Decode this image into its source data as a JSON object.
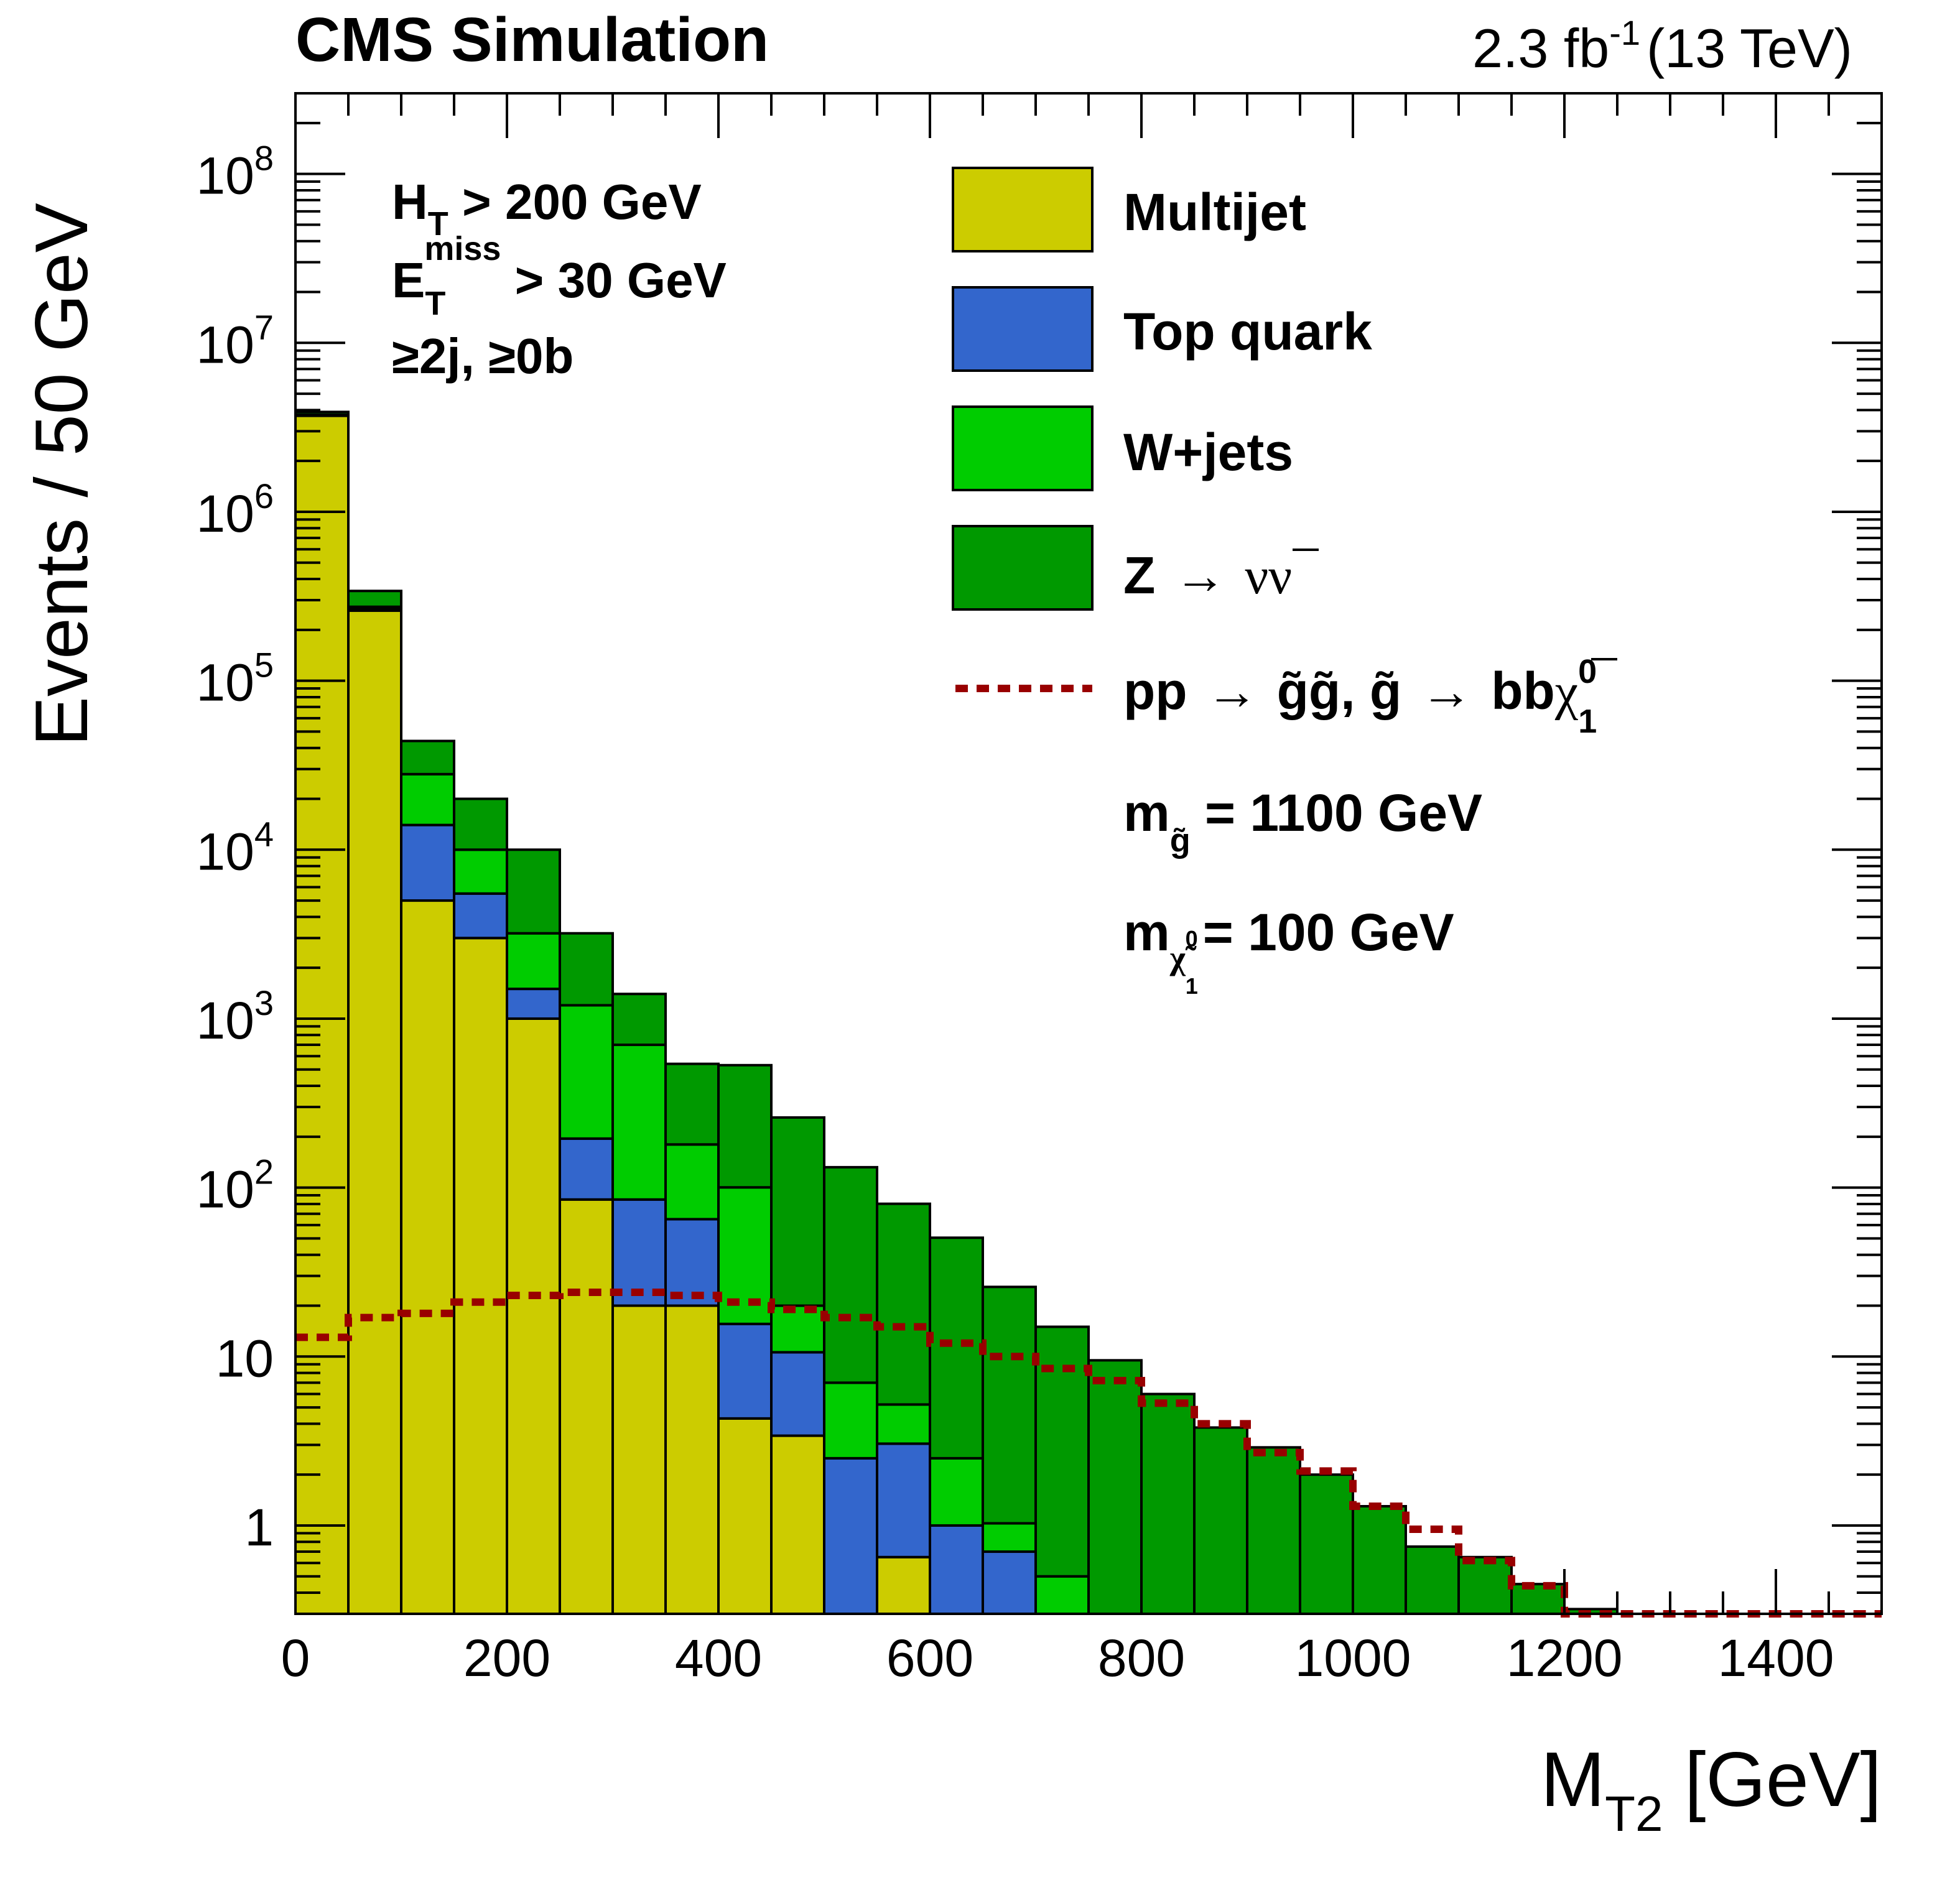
{
  "header": {
    "experiment": "CMS Simulation",
    "lumi_value": "2.3 fb",
    "lumi_exp": "-1",
    "energy": "(13 TeV)"
  },
  "cuts": {
    "ht_main": "H",
    "ht_sub": "T",
    "ht_rest": " > 200 GeV",
    "met_main": "E",
    "met_sub": "T",
    "met_sup": "miss",
    "met_rest": " > 30 GeV",
    "jets": "≥2j, ≥0b"
  },
  "legend": {
    "multijet": "Multijet",
    "top": "Top quark",
    "wjets": "W+jets",
    "z_main": "Z",
    "z_arrow": "→",
    "z_nu": "νν",
    "signal_pp": "pp",
    "signal_arrow": "→",
    "signal_gg": "g̃g̃, g̃",
    "signal_arrow2": "→",
    "signal_bb": "bb",
    "signal_chi": "χ",
    "signal_chi_sup": "0",
    "signal_chi_sub": "1",
    "mg_main": "m",
    "mg_sub": "g̃",
    "mg_rest": " = 1100 GeV",
    "mchi_main": "m",
    "mchi_sub": "χ̃",
    "mchi_sub_sup": "0",
    "mchi_sub_sub": "1",
    "mchi_rest": "= 100 GeV"
  },
  "axes": {
    "ylabel": "Events / 50 GeV",
    "xlabel_main": "M",
    "xlabel_sub": "T2",
    "xlabel_unit": " [GeV]"
  },
  "colors": {
    "multijet": "#cccc00",
    "top": "#3366cc",
    "wjets": "#00cc00",
    "znunu": "#009900",
    "signal": "#990000"
  },
  "chart_data": {
    "type": "bar",
    "stacked": true,
    "log_y": true,
    "bin_width": 50,
    "x_edges": [
      0,
      50,
      100,
      150,
      200,
      250,
      300,
      350,
      400,
      450,
      500,
      550,
      600,
      650,
      700,
      750,
      800,
      850,
      900,
      950,
      1000,
      1050,
      1100,
      1150,
      1200,
      1250,
      1300,
      1350,
      1400,
      1450,
      1500
    ],
    "xlim": [
      0,
      1500
    ],
    "ylim": [
      0.3,
      300000000
    ],
    "x_ticks": [
      0,
      200,
      400,
      600,
      800,
      1000,
      1200,
      1400
    ],
    "y_ticks": [
      {
        "value": 1,
        "base": "1",
        "exp": ""
      },
      {
        "value": 10,
        "base": "10",
        "exp": ""
      },
      {
        "value": 100,
        "base": "10",
        "exp": "2"
      },
      {
        "value": 1000,
        "base": "10",
        "exp": "3"
      },
      {
        "value": 10000,
        "base": "10",
        "exp": "4"
      },
      {
        "value": 100000,
        "base": "10",
        "exp": "5"
      },
      {
        "value": 1000000,
        "base": "10",
        "exp": "6"
      },
      {
        "value": 10000000,
        "base": "10",
        "exp": "7"
      },
      {
        "value": 100000000,
        "base": "10",
        "exp": "8"
      }
    ],
    "series": [
      {
        "name": "Multijet",
        "key": "multijet",
        "values": [
          3700000,
          260000,
          5000,
          3000,
          1000,
          85,
          20,
          20,
          4.3,
          3.4,
          0.3,
          0.65,
          0,
          0,
          0,
          0,
          0,
          0,
          0,
          0,
          0,
          0,
          0,
          0,
          0,
          0,
          0,
          0,
          0,
          0
        ]
      },
      {
        "name": "Top quark",
        "key": "top",
        "values": [
          20000,
          6000,
          9000,
          2500,
          500,
          110,
          65,
          45,
          11.3,
          7.2,
          2.2,
          2.4,
          1,
          0.7,
          0.18,
          0,
          0,
          0,
          0,
          0,
          0,
          0,
          0,
          0,
          0,
          0,
          0,
          0,
          0,
          0
        ]
      },
      {
        "name": "W+jets",
        "key": "wjets",
        "values": [
          40000,
          8000,
          14000,
          4500,
          1700,
          1005,
          615,
          115,
          84.7,
          9.4,
          4.5,
          2.15,
          1.5,
          0.33,
          0.32,
          0,
          0,
          0,
          0,
          0,
          0,
          0,
          0,
          0,
          0,
          0,
          0,
          0,
          0,
          0
        ]
      },
      {
        "name": "Z → νν",
        "key": "znunu",
        "values": [
          140000,
          66000,
          16000,
          10000,
          6800,
          2000,
          700,
          360,
          430,
          240,
          125,
          75,
          48,
          24.8,
          14.5,
          9.5,
          6,
          3.8,
          2.9,
          2.0,
          1.3,
          0.75,
          0.65,
          0.45,
          0.32,
          0,
          0,
          0,
          0,
          0
        ]
      }
    ],
    "signal": {
      "name": "pp → g̃g̃, g̃ → bbχ⁰₁",
      "values": [
        13,
        17,
        18,
        21,
        23,
        24,
        24,
        23,
        21,
        19,
        17,
        15,
        12,
        10,
        8.5,
        7.2,
        5.3,
        4.0,
        2.7,
        2.1,
        1.3,
        0.95,
        0.62,
        0.44,
        0.3,
        0.3,
        0.3,
        0.3,
        0.3,
        0.3
      ]
    }
  }
}
